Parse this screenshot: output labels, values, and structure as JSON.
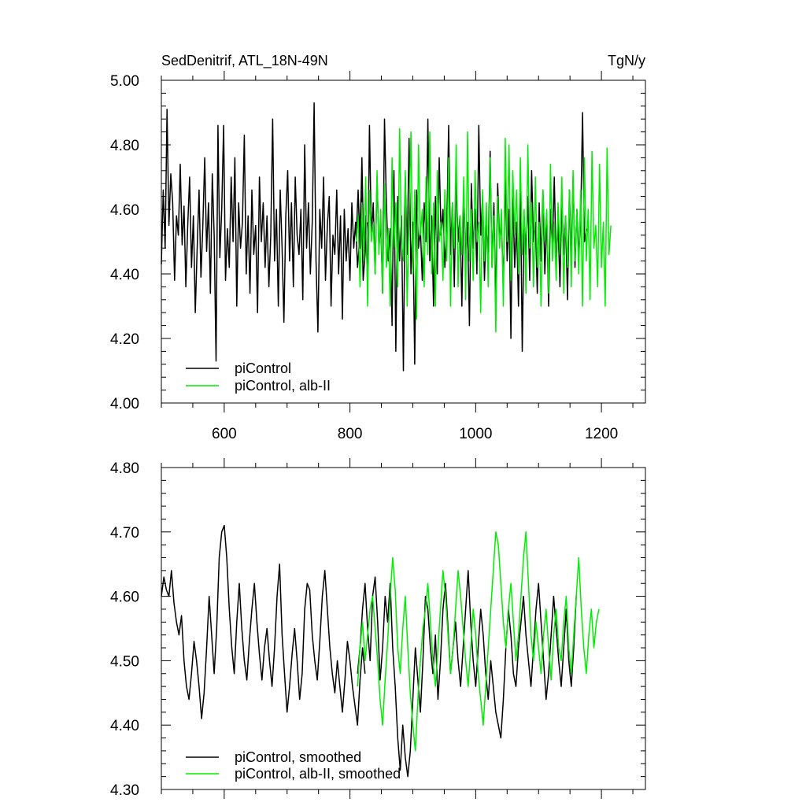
{
  "chart_data": [
    {
      "type": "line",
      "title": "SedDenitrif, ATL_18N-49N",
      "units": "TgN/y",
      "xlabel": "",
      "ylabel": "",
      "xlim": [
        500,
        1270
      ],
      "ylim": [
        4.0,
        5.0
      ],
      "x_ticks": [
        600,
        800,
        1000,
        1200
      ],
      "x_tick_labels": [
        "600",
        "800",
        "1000",
        "1200"
      ],
      "y_ticks": [
        4.0,
        4.2,
        4.4,
        4.6,
        4.8,
        5.0
      ],
      "y_tick_labels": [
        "4.00",
        "4.20",
        "4.40",
        "4.60",
        "4.80",
        "5.00"
      ],
      "grid": false,
      "legend": "bottom-left",
      "series": [
        {
          "name": "piControl",
          "color": "#000000",
          "x_start": 500,
          "x_step": 3,
          "values": [
            4.43,
            4.66,
            4.48,
            4.91,
            4.55,
            4.71,
            4.62,
            4.38,
            4.58,
            4.52,
            4.74,
            4.49,
            4.61,
            4.36,
            4.55,
            4.7,
            4.42,
            4.58,
            4.28,
            4.48,
            4.66,
            4.39,
            4.55,
            4.76,
            4.47,
            4.62,
            4.34,
            4.71,
            4.52,
            4.13,
            4.86,
            4.45,
            4.6,
            4.86,
            4.38,
            4.54,
            4.42,
            4.7,
            4.5,
            4.76,
            4.3,
            4.62,
            4.48,
            4.56,
            4.83,
            4.4,
            4.58,
            4.34,
            4.66,
            4.46,
            4.55,
            4.28,
            4.7,
            4.5,
            4.62,
            4.42,
            4.58,
            4.36,
            4.52,
            4.88,
            4.44,
            4.6,
            4.3,
            4.66,
            4.48,
            4.25,
            4.58,
            4.72,
            4.44,
            4.62,
            4.36,
            4.7,
            4.52,
            4.46,
            4.6,
            4.32,
            4.8,
            4.48,
            4.62,
            4.4,
            4.56,
            4.93,
            4.44,
            4.22,
            4.6,
            4.48,
            4.7,
            4.38,
            4.55,
            4.64,
            4.3,
            4.52,
            4.46,
            4.66,
            4.4,
            4.58,
            4.26,
            4.6,
            4.44,
            4.54,
            4.38,
            4.62,
            4.48,
            4.56,
            4.42,
            4.5,
            4.66,
            4.38,
            4.46,
            4.56
          ]
        },
        {
          "name": "piControl",
          "color": "#000000",
          "x_start": 810,
          "x_step": 3,
          "values": [
            4.52,
            4.66,
            4.48,
            4.76,
            4.44,
            4.58,
            4.36,
            4.86,
            4.52,
            4.62,
            4.4,
            4.7,
            4.48,
            4.56,
            4.34,
            4.88,
            4.62,
            4.44,
            4.54,
            4.24,
            4.72,
            4.16,
            4.64,
            4.44,
            4.58,
            4.1,
            4.7,
            4.46,
            4.82,
            4.4,
            4.56,
            4.12,
            4.66,
            4.48,
            4.54,
            4.38,
            4.62,
            4.5,
            4.88,
            4.44,
            4.58,
            4.3,
            4.64,
            4.4,
            4.76,
            4.52,
            4.6,
            4.42,
            4.54,
            4.86,
            4.46,
            4.62,
            4.36,
            4.7,
            4.5,
            4.58,
            4.3,
            4.66,
            4.44,
            4.56,
            4.24,
            4.68,
            4.48,
            4.6,
            4.4,
            4.86,
            4.52,
            4.64,
            4.38,
            4.56,
            4.46,
            4.78,
            4.42,
            4.62,
            4.3,
            4.68,
            4.5,
            4.56,
            4.36,
            4.72,
            4.44,
            4.6,
            4.2,
            4.66,
            4.42,
            4.56,
            4.3,
            4.7,
            4.16,
            4.58,
            4.46,
            4.64,
            4.38,
            4.72,
            4.5,
            4.56,
            4.34,
            4.62,
            4.44,
            4.66,
            4.4,
            4.58,
            4.3,
            4.6,
            4.48,
            4.7,
            4.42,
            4.56,
            4.36,
            4.64,
            4.46,
            4.58,
            4.32,
            4.66,
            4.44,
            4.7,
            4.42,
            4.6,
            4.46,
            4.56,
            4.9,
            4.5,
            4.54
          ]
        },
        {
          "name": "piControl, alb-II",
          "color": "#00ee00",
          "x_start": 810,
          "x_step": 3,
          "values": [
            4.5,
            4.58,
            4.36,
            4.62,
            4.44,
            4.7,
            4.3,
            4.66,
            4.5,
            4.56,
            4.4,
            4.72,
            4.46,
            4.6,
            4.34,
            4.68,
            4.42,
            4.54,
            4.3,
            4.76,
            4.48,
            4.62,
            4.36,
            4.85,
            4.5,
            4.44,
            4.72,
            4.3,
            4.58,
            4.84,
            4.4,
            4.66,
            4.26,
            4.8,
            4.52,
            4.6,
            4.36,
            4.7,
            4.46,
            4.84,
            4.4,
            4.62,
            4.3,
            4.72,
            4.5,
            4.56,
            4.38,
            4.66,
            4.44,
            4.76,
            4.3,
            4.62,
            4.48,
            4.8,
            4.36,
            4.58,
            4.46,
            4.7,
            4.32,
            4.84,
            4.44,
            4.6,
            4.38,
            4.72,
            4.5,
            4.56,
            4.28,
            4.66,
            4.44,
            4.62,
            4.36,
            4.76,
            4.42,
            4.58,
            4.22,
            4.64,
            4.48,
            4.6,
            4.3,
            4.82,
            4.5,
            4.8,
            4.38,
            4.72,
            4.52,
            4.66,
            4.4,
            4.76,
            4.46,
            4.6,
            4.34,
            4.8,
            4.48,
            4.62,
            4.36,
            4.7,
            4.42,
            4.56,
            4.3,
            4.66,
            4.5,
            4.6,
            4.34,
            4.74,
            4.44,
            4.56,
            4.38,
            4.62,
            4.46,
            4.7,
            4.34,
            4.58,
            4.42,
            4.66,
            4.36,
            4.72,
            4.44,
            4.6,
            4.4,
            4.66,
            4.3,
            4.76,
            4.44,
            4.6,
            4.32,
            4.78,
            4.48,
            4.55,
            4.36,
            4.74,
            4.42,
            4.56,
            4.3,
            4.79,
            4.46,
            4.55
          ]
        }
      ]
    },
    {
      "type": "line",
      "title": "",
      "xlabel": "",
      "ylabel": "",
      "xlim": [
        500,
        1270
      ],
      "ylim": [
        4.3,
        4.8
      ],
      "y_ticks": [
        4.3,
        4.4,
        4.5,
        4.6,
        4.7,
        4.8
      ],
      "y_tick_labels": [
        "4.30",
        "4.40",
        "4.50",
        "4.60",
        "4.70",
        "4.80"
      ],
      "grid": false,
      "legend": "bottom-left",
      "series": [
        {
          "name": "piControl, smoothed",
          "color": "#000000",
          "x_start": 500,
          "x_step": 4,
          "values": [
            4.6,
            4.63,
            4.61,
            4.6,
            4.64,
            4.59,
            4.56,
            4.54,
            4.57,
            4.5,
            4.46,
            4.44,
            4.48,
            4.53,
            4.5,
            4.46,
            4.41,
            4.45,
            4.52,
            4.6,
            4.54,
            4.48,
            4.55,
            4.66,
            4.7,
            4.71,
            4.66,
            4.58,
            4.52,
            4.48,
            4.56,
            4.62,
            4.55,
            4.5,
            4.47,
            4.53,
            4.58,
            4.62,
            4.56,
            4.51,
            4.47,
            4.52,
            4.55,
            4.5,
            4.46,
            4.52,
            4.6,
            4.65,
            4.54,
            4.48,
            4.42,
            4.46,
            4.51,
            4.55,
            4.5,
            4.44,
            4.48,
            4.58,
            4.62,
            4.61,
            4.54,
            4.5,
            4.47,
            4.53,
            4.6,
            4.64,
            4.58,
            4.52,
            4.48,
            4.45,
            4.5,
            4.46,
            4.42,
            4.47,
            4.53,
            4.5,
            4.46,
            4.43,
            4.4,
            4.47,
            4.52,
            4.48
          ]
        },
        {
          "name": "piControl, smoothed",
          "color": "#000000",
          "x_start": 812,
          "x_step": 4,
          "values": [
            4.48,
            4.52,
            4.58,
            4.62,
            4.55,
            4.5,
            4.6,
            4.63,
            4.56,
            4.47,
            4.52,
            4.6,
            4.56,
            4.62,
            4.52,
            4.46,
            4.38,
            4.33,
            4.4,
            4.35,
            4.32,
            4.36,
            4.44,
            4.52,
            4.47,
            4.42,
            4.5,
            4.6,
            4.58,
            4.52,
            4.48,
            4.54,
            4.44,
            4.5,
            4.58,
            4.62,
            4.55,
            4.48,
            4.52,
            4.56,
            4.5,
            4.46,
            4.52,
            4.58,
            4.64,
            4.56,
            4.5,
            4.46,
            4.52,
            4.58,
            4.54,
            4.48,
            4.44,
            4.5,
            4.46,
            4.42,
            4.4,
            4.38,
            4.44,
            4.52,
            4.58,
            4.54,
            4.48,
            4.46,
            4.52,
            4.56,
            4.6,
            4.54,
            4.5,
            4.46,
            4.52,
            4.58,
            4.62,
            4.56,
            4.5,
            4.44,
            4.48,
            4.54,
            4.6,
            4.55,
            4.5,
            4.46,
            4.52,
            4.58,
            4.5,
            4.46,
            4.52,
            4.6
          ]
        },
        {
          "name": "piControl, alb-II, smoothed",
          "color": "#00ee00",
          "x_start": 812,
          "x_step": 4,
          "values": [
            4.46,
            4.52,
            4.56,
            4.5,
            4.54,
            4.58,
            4.6,
            4.55,
            4.5,
            4.44,
            4.4,
            4.47,
            4.53,
            4.6,
            4.66,
            4.61,
            4.52,
            4.48,
            4.55,
            4.6,
            4.52,
            4.45,
            4.4,
            4.36,
            4.44,
            4.5,
            4.55,
            4.58,
            4.62,
            4.56,
            4.5,
            4.46,
            4.52,
            4.58,
            4.64,
            4.6,
            4.54,
            4.48,
            4.52,
            4.58,
            4.64,
            4.6,
            4.55,
            4.5,
            4.46,
            4.52,
            4.58,
            4.54,
            4.48,
            4.44,
            4.4,
            4.46,
            4.52,
            4.58,
            4.64,
            4.7,
            4.68,
            4.62,
            4.56,
            4.52,
            4.58,
            4.62,
            4.56,
            4.5,
            4.54,
            4.6,
            4.66,
            4.7,
            4.62,
            4.54,
            4.5,
            4.56,
            4.52,
            4.48,
            4.54,
            4.58,
            4.52,
            4.47,
            4.54,
            4.58,
            4.52,
            4.5,
            4.56,
            4.6,
            4.52,
            4.48,
            4.54,
            4.6,
            4.66,
            4.58,
            4.52,
            4.48,
            4.54,
            4.58,
            4.52,
            4.56,
            4.58
          ]
        }
      ]
    }
  ]
}
